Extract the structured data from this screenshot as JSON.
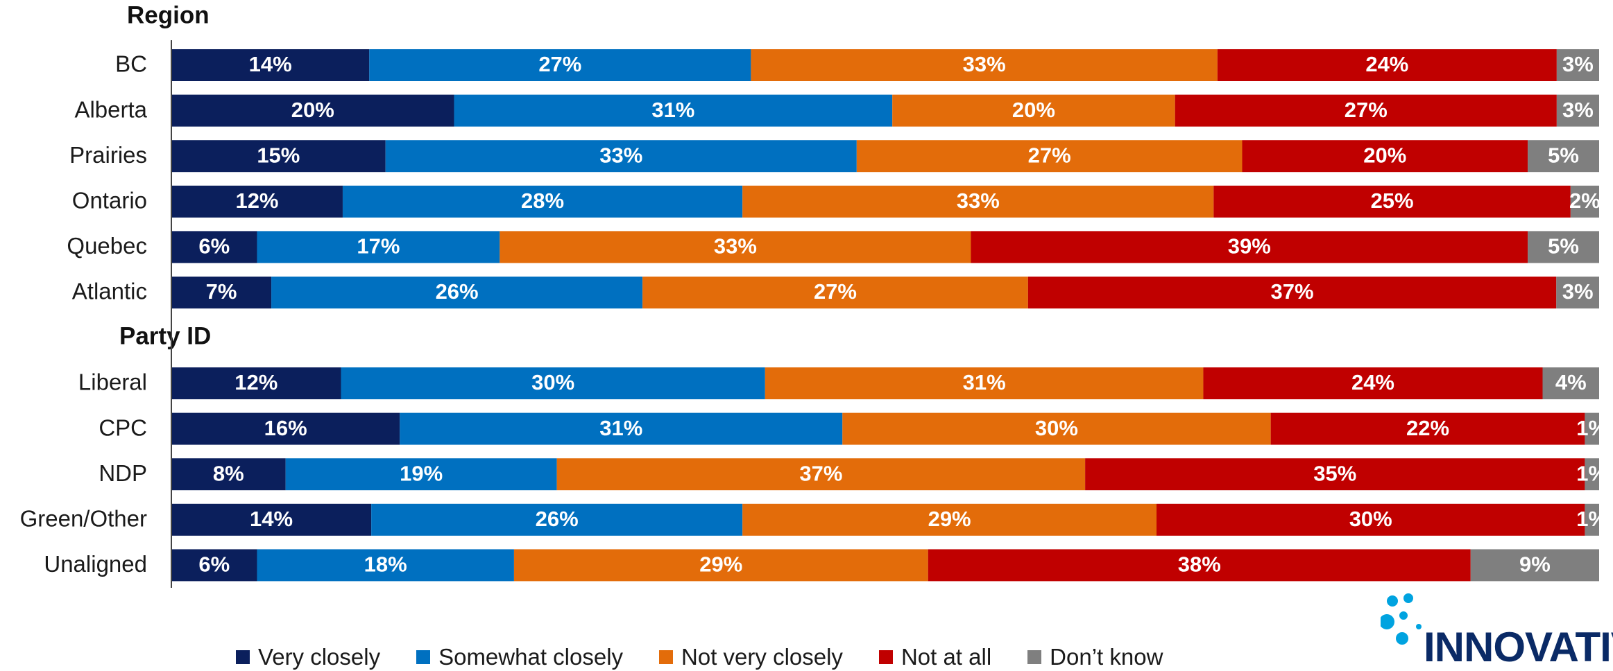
{
  "chart_data": {
    "type": "bar",
    "orientation": "horizontal",
    "stacked": true,
    "title": "",
    "xlabel": "",
    "ylabel": "",
    "xlim": [
      0,
      100
    ],
    "grid": false,
    "legend_position": "bottom",
    "groups": [
      {
        "label": "Region",
        "categories": [
          "BC",
          "Alberta",
          "Prairies",
          "Ontario",
          "Quebec",
          "Atlantic"
        ],
        "values": [
          [
            14,
            27,
            33,
            24,
            3
          ],
          [
            20,
            31,
            20,
            27,
            3
          ],
          [
            15,
            33,
            27,
            20,
            5
          ],
          [
            12,
            28,
            33,
            25,
            2
          ],
          [
            6,
            17,
            33,
            39,
            5
          ],
          [
            7,
            26,
            27,
            37,
            3
          ]
        ]
      },
      {
        "label": "Party ID",
        "categories": [
          "Liberal",
          "CPC",
          "NDP",
          "Green/Other",
          "Unaligned"
        ],
        "values": [
          [
            12,
            30,
            31,
            24,
            4
          ],
          [
            16,
            31,
            30,
            22,
            1
          ],
          [
            8,
            19,
            37,
            35,
            1
          ],
          [
            14,
            26,
            29,
            30,
            1
          ],
          [
            6,
            18,
            29,
            38,
            9
          ]
        ]
      }
    ],
    "series": [
      {
        "name": "Very closely",
        "color": "#0b1f5c"
      },
      {
        "name": "Somewhat closely",
        "color": "#0070c0"
      },
      {
        "name": "Not very closely",
        "color": "#e36c0a"
      },
      {
        "name": "Not at all",
        "color": "#c00000"
      },
      {
        "name": "Don’t know",
        "color": "#7f7f7f"
      }
    ]
  },
  "logo": {
    "text": "INNOVATIVE",
    "color": "#0a2a66",
    "dot_color": "#00a3e0"
  }
}
